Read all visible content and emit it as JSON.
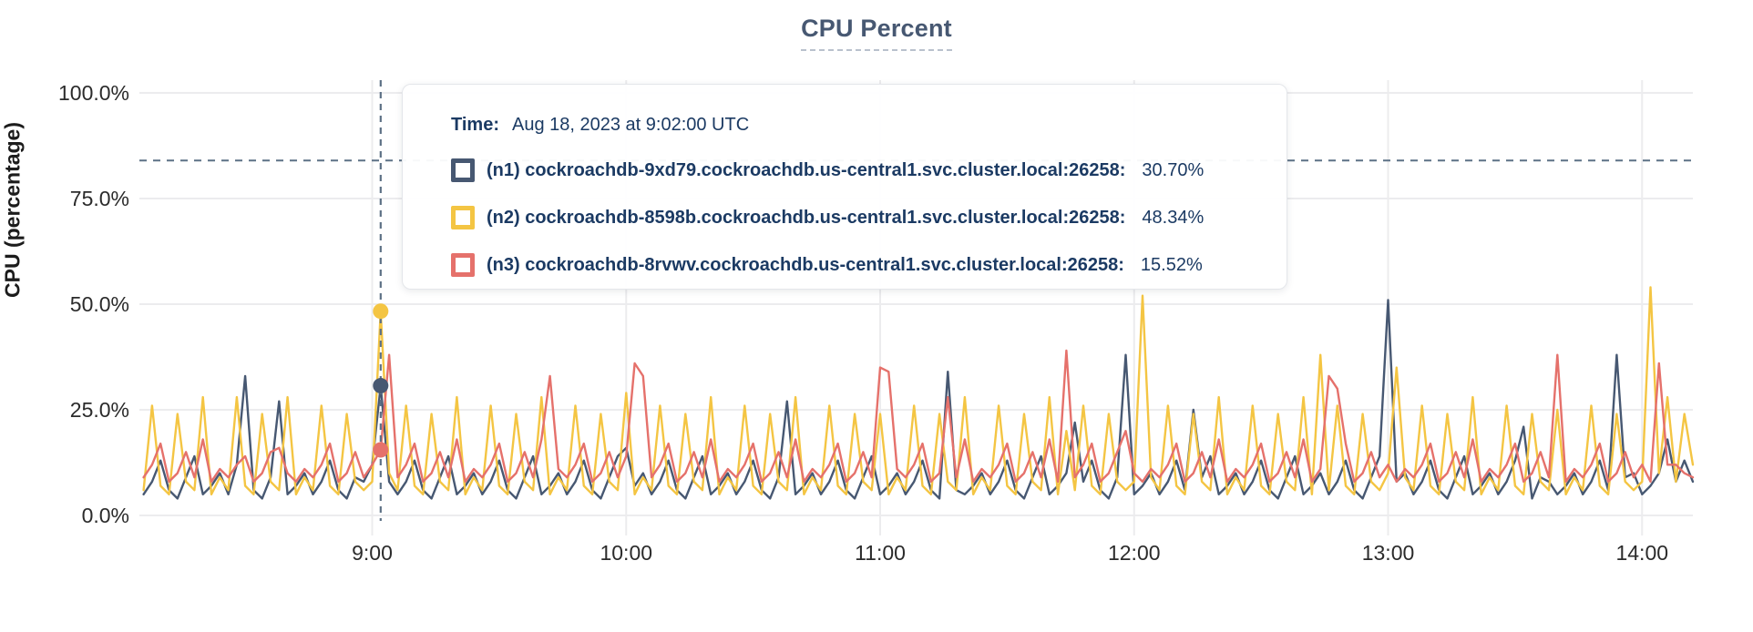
{
  "page": {
    "title": "CPU Percent"
  },
  "y_axis": {
    "title": "CPU (percentage)"
  },
  "tooltip": {
    "time_label": "Time:",
    "time_value": "Aug 18, 2023 at 9:02:00 UTC",
    "rows": [
      {
        "label": "(n1) cockroachdb-9xd79.cockroachdb.us-central1.svc.cluster.local:26258:",
        "value": "30.70%"
      },
      {
        "label": "(n2) cockroachdb-8598b.cockroachdb.us-central1.svc.cluster.local:26258:",
        "value": "48.34%"
      },
      {
        "label": "(n3) cockroachdb-8rvwv.cockroachdb.us-central1.svc.cluster.local:26258:",
        "value": "15.52%"
      }
    ]
  },
  "colors": {
    "title": "#475872",
    "tooltip_text": "#1b3a63",
    "gridline": "#ececee",
    "guide_dash": "#5d7186",
    "axis_text": "#2b2b2b"
  },
  "chart_data": {
    "type": "line",
    "title": "CPU Percent",
    "ylabel": "CPU (percentage)",
    "xlabel": "",
    "ylim": [
      0,
      100
    ],
    "x_range_minutes": [
      485,
      852
    ],
    "x_start_minutes": 486,
    "x_step_minutes": 2,
    "grid": true,
    "y_ticks": [
      {
        "label": "0.0%",
        "value": 0
      },
      {
        "label": "25.0%",
        "value": 25
      },
      {
        "label": "50.0%",
        "value": 50
      },
      {
        "label": "75.0%",
        "value": 75
      },
      {
        "label": "100.0%",
        "value": 100
      }
    ],
    "x_ticks": [
      {
        "label": "9:00",
        "minutes": 540
      },
      {
        "label": "10:00",
        "minutes": 600
      },
      {
        "label": "11:00",
        "minutes": 660
      },
      {
        "label": "12:00",
        "minutes": 720
      },
      {
        "label": "13:00",
        "minutes": 780
      },
      {
        "label": "14:00",
        "minutes": 840
      }
    ],
    "guide_line_percent": 84,
    "crosshair": {
      "minutes": 542,
      "time": "Aug 18, 2023 at 9:02:00 UTC",
      "dots": [
        {
          "series": "n1",
          "value": 30.7
        },
        {
          "series": "n2",
          "value": 48.34
        },
        {
          "series": "n3",
          "value": 15.52
        }
      ]
    },
    "series": [
      {
        "id": "n1",
        "name": "(n1) cockroachdb-9xd79.cockroachdb.us-central1.svc.cluster.local:26258",
        "color": "#475872",
        "values": [
          5,
          8,
          13,
          6,
          4,
          9,
          14,
          5,
          7,
          10,
          5,
          12,
          33,
          6,
          4,
          9,
          27,
          5,
          7,
          10,
          5,
          8,
          13,
          6,
          4,
          9,
          8,
          12,
          30.7,
          8,
          5,
          8,
          13,
          6,
          4,
          9,
          14,
          5,
          7,
          10,
          5,
          8,
          13,
          6,
          4,
          9,
          14,
          5,
          7,
          10,
          5,
          8,
          13,
          6,
          4,
          9,
          14,
          16,
          7,
          10,
          5,
          8,
          13,
          6,
          4,
          9,
          14,
          5,
          7,
          10,
          5,
          8,
          13,
          6,
          4,
          9,
          27,
          5,
          7,
          10,
          5,
          8,
          13,
          6,
          4,
          9,
          14,
          5,
          7,
          10,
          5,
          8,
          13,
          6,
          4,
          34,
          6,
          5,
          7,
          10,
          5,
          8,
          13,
          6,
          4,
          9,
          14,
          5,
          7,
          10,
          22,
          8,
          13,
          6,
          4,
          9,
          38,
          5,
          7,
          10,
          5,
          8,
          13,
          6,
          25,
          9,
          14,
          5,
          7,
          10,
          5,
          8,
          13,
          6,
          4,
          9,
          14,
          5,
          7,
          10,
          5,
          8,
          13,
          6,
          4,
          9,
          14,
          51,
          8,
          10,
          5,
          8,
          13,
          6,
          4,
          9,
          14,
          5,
          7,
          10,
          5,
          8,
          13,
          21,
          4,
          9,
          8,
          5,
          7,
          10,
          5,
          8,
          13,
          6,
          38,
          9,
          10,
          5,
          7,
          10,
          18,
          8,
          13,
          8
        ]
      },
      {
        "id": "n2",
        "name": "(n2) cockroachdb-8598b.cockroachdb.us-central1.svc.cluster.local:26258",
        "color": "#f4c543",
        "values": [
          6,
          26,
          7,
          5,
          24,
          8,
          6,
          28,
          5,
          9,
          6,
          28,
          7,
          5,
          24,
          8,
          6,
          28,
          5,
          9,
          6,
          26,
          7,
          5,
          24,
          8,
          6,
          8,
          48.3,
          10,
          6,
          26,
          7,
          5,
          24,
          8,
          6,
          28,
          5,
          9,
          6,
          26,
          7,
          5,
          24,
          8,
          6,
          28,
          5,
          9,
          6,
          26,
          7,
          5,
          24,
          8,
          6,
          29,
          5,
          9,
          6,
          26,
          7,
          5,
          24,
          8,
          6,
          28,
          5,
          9,
          6,
          26,
          7,
          5,
          24,
          8,
          6,
          28,
          5,
          9,
          6,
          26,
          7,
          5,
          24,
          8,
          6,
          24,
          5,
          9,
          6,
          26,
          7,
          5,
          24,
          8,
          6,
          28,
          5,
          9,
          6,
          26,
          7,
          5,
          24,
          8,
          6,
          28,
          5,
          20,
          6,
          26,
          7,
          5,
          24,
          8,
          6,
          8,
          52,
          9,
          6,
          26,
          7,
          5,
          24,
          8,
          6,
          28,
          5,
          9,
          6,
          26,
          7,
          5,
          24,
          8,
          6,
          28,
          5,
          38,
          6,
          26,
          7,
          5,
          24,
          8,
          6,
          10,
          35,
          9,
          6,
          26,
          7,
          5,
          24,
          8,
          6,
          28,
          5,
          9,
          6,
          26,
          7,
          5,
          24,
          8,
          6,
          25,
          5,
          9,
          6,
          26,
          7,
          5,
          24,
          8,
          6,
          8,
          54,
          10,
          28,
          8,
          24,
          12
        ]
      },
      {
        "id": "n3",
        "name": "(n3) cockroachdb-8rvwv.cockroachdb.us-central1.svc.cluster.local:26258",
        "color": "#e5716b",
        "values": [
          9,
          12,
          17,
          8,
          10,
          15,
          9,
          18,
          8,
          11,
          9,
          12,
          14,
          8,
          10,
          15,
          16,
          10,
          8,
          11,
          9,
          12,
          17,
          8,
          10,
          15,
          9,
          12,
          15.5,
          38,
          9,
          12,
          17,
          8,
          10,
          15,
          9,
          18,
          8,
          11,
          9,
          12,
          17,
          8,
          10,
          15,
          9,
          18,
          33,
          11,
          9,
          12,
          17,
          8,
          10,
          15,
          9,
          14,
          36,
          33,
          9,
          12,
          17,
          8,
          10,
          15,
          9,
          18,
          8,
          11,
          9,
          12,
          17,
          8,
          10,
          15,
          9,
          18,
          8,
          11,
          9,
          12,
          17,
          8,
          10,
          15,
          9,
          35,
          34,
          11,
          9,
          12,
          17,
          8,
          10,
          28,
          9,
          18,
          8,
          11,
          9,
          12,
          17,
          8,
          10,
          15,
          9,
          18,
          8,
          39,
          9,
          12,
          17,
          8,
          10,
          15,
          20,
          10,
          8,
          11,
          9,
          12,
          17,
          8,
          10,
          15,
          9,
          18,
          8,
          11,
          9,
          12,
          17,
          8,
          10,
          15,
          9,
          18,
          8,
          11,
          33,
          30,
          17,
          8,
          10,
          15,
          9,
          12,
          8,
          11,
          9,
          12,
          17,
          8,
          10,
          15,
          9,
          18,
          8,
          11,
          9,
          12,
          17,
          8,
          10,
          15,
          9,
          38,
          8,
          11,
          9,
          12,
          17,
          8,
          10,
          15,
          9,
          12,
          8,
          36,
          12,
          12,
          10,
          9
        ]
      }
    ]
  }
}
